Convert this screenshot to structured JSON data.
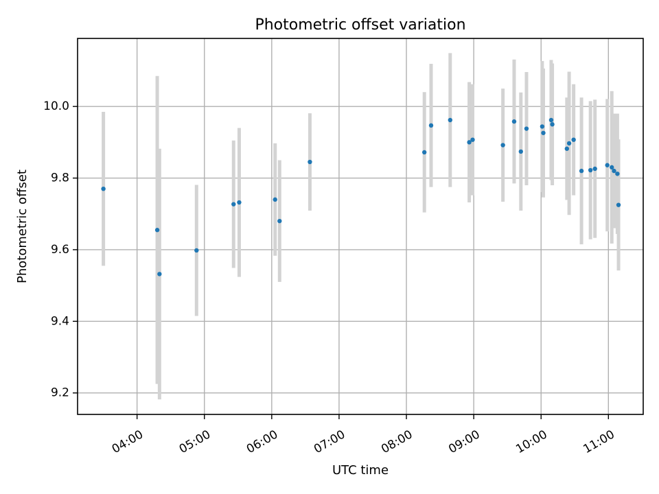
{
  "chart_data": {
    "type": "scatter",
    "title": "Photometric offset variation",
    "xlabel": "UTC time",
    "ylabel": "Photometric offset",
    "x_ticks": [
      "04:00",
      "05:00",
      "06:00",
      "07:00",
      "08:00",
      "09:00",
      "10:00",
      "11:00"
    ],
    "y_ticks": [
      "9.2",
      "9.4",
      "9.6",
      "9.8",
      "10.0"
    ],
    "xlim": [
      "03:07",
      "11:31"
    ],
    "ylim": [
      9.14,
      10.19
    ],
    "grid": true,
    "marker_color": "#1f77b4",
    "errorbar_color": "#d3d3d3",
    "series": [
      {
        "points": [
          {
            "x": "03:30",
            "y": 9.77,
            "yerr": 0.215
          },
          {
            "x": "04:18",
            "y": 9.655,
            "yerr": 0.43
          },
          {
            "x": "04:20",
            "y": 9.532,
            "yerr": 0.35
          },
          {
            "x": "04:53",
            "y": 9.598,
            "yerr": 0.183
          },
          {
            "x": "05:26",
            "y": 9.727,
            "yerr": 0.178
          },
          {
            "x": "05:31",
            "y": 9.732,
            "yerr": 0.208
          },
          {
            "x": "06:03",
            "y": 9.74,
            "yerr": 0.157
          },
          {
            "x": "06:07",
            "y": 9.68,
            "yerr": 0.17
          },
          {
            "x": "06:34",
            "y": 9.845,
            "yerr": 0.136
          },
          {
            "x": "08:16",
            "y": 9.872,
            "yerr": 0.168
          },
          {
            "x": "08:22",
            "y": 9.947,
            "yerr": 0.172
          },
          {
            "x": "08:39",
            "y": 9.962,
            "yerr": 0.187
          },
          {
            "x": "08:56",
            "y": 9.9,
            "yerr": 0.168
          },
          {
            "x": "08:59",
            "y": 9.907,
            "yerr": 0.155
          },
          {
            "x": "09:26",
            "y": 9.892,
            "yerr": 0.158
          },
          {
            "x": "09:36",
            "y": 9.958,
            "yerr": 0.173
          },
          {
            "x": "09:42",
            "y": 9.874,
            "yerr": 0.165
          },
          {
            "x": "09:47",
            "y": 9.938,
            "yerr": 0.158
          },
          {
            "x": "10:01",
            "y": 9.944,
            "yerr": 0.183
          },
          {
            "x": "10:02",
            "y": 9.926,
            "yerr": 0.18
          },
          {
            "x": "10:09",
            "y": 9.962,
            "yerr": 0.168
          },
          {
            "x": "10:10",
            "y": 9.95,
            "yerr": 0.17
          },
          {
            "x": "10:23",
            "y": 9.882,
            "yerr": 0.143
          },
          {
            "x": "10:25",
            "y": 9.897,
            "yerr": 0.2
          },
          {
            "x": "10:29",
            "y": 9.907,
            "yerr": 0.155
          },
          {
            "x": "10:36",
            "y": 9.82,
            "yerr": 0.205
          },
          {
            "x": "10:44",
            "y": 9.822,
            "yerr": 0.193
          },
          {
            "x": "10:48",
            "y": 9.826,
            "yerr": 0.193
          },
          {
            "x": "10:59",
            "y": 9.836,
            "yerr": 0.185
          },
          {
            "x": "11:03",
            "y": 9.83,
            "yerr": 0.213
          },
          {
            "x": "11:05",
            "y": 9.82,
            "yerr": 0.16
          },
          {
            "x": "11:08",
            "y": 9.812,
            "yerr": 0.168
          },
          {
            "x": "11:09",
            "y": 9.725,
            "yerr": 0.183
          }
        ]
      }
    ]
  }
}
